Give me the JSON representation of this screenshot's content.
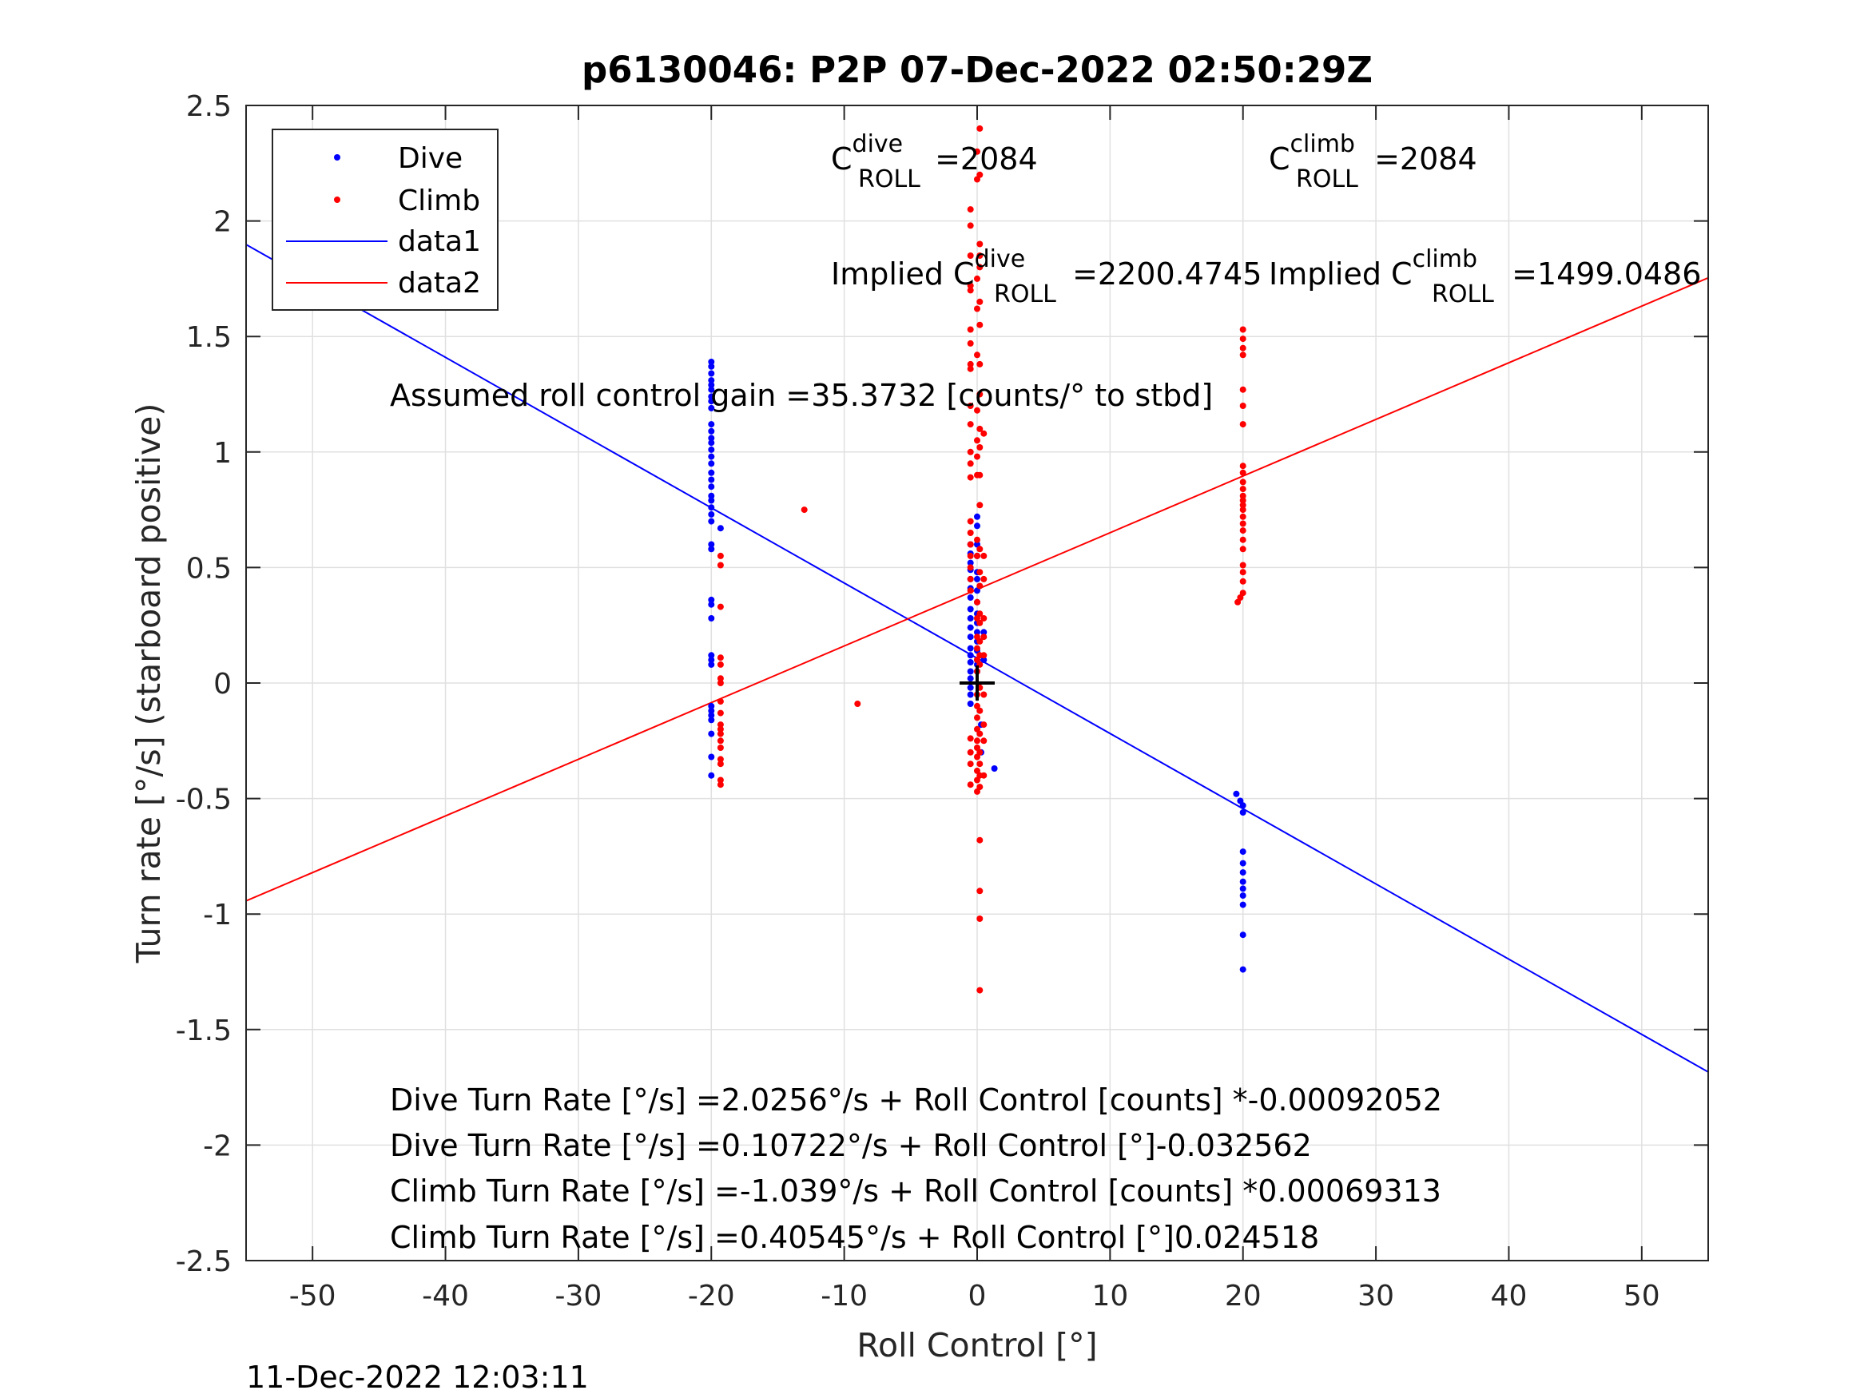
{
  "chart_data": {
    "type": "scatter",
    "title": "p6130046: P2P 07-Dec-2022 02:50:29Z",
    "xlabel": "Roll Control [°]",
    "ylabel": "Turn rate [°/s] (starboard positive)",
    "xlim": [
      -55,
      55
    ],
    "ylim": [
      -2.5,
      2.5
    ],
    "xticks": [
      "-50",
      "-40",
      "-30",
      "-20",
      "-10",
      "0",
      "10",
      "20",
      "30",
      "40",
      "50"
    ],
    "yticks": [
      "2.5",
      "2",
      "1.5",
      "1",
      "0.5",
      "0",
      "-0.5",
      "-1",
      "-1.5",
      "-2",
      "-2.5"
    ],
    "grid": true,
    "legend_position": "top-left",
    "series": [
      {
        "name": "Dive",
        "kind": "points",
        "color": "#0000ff",
        "points": [
          [
            -20,
            1.39
          ],
          [
            -20,
            1.37
          ],
          [
            -20,
            1.34
          ],
          [
            -20,
            1.31
          ],
          [
            -20,
            1.29
          ],
          [
            -20,
            1.27
          ],
          [
            -20,
            1.24
          ],
          [
            -20,
            1.22
          ],
          [
            -20,
            1.19
          ],
          [
            -20,
            1.12
          ],
          [
            -20,
            1.09
          ],
          [
            -20,
            1.06
          ],
          [
            -20,
            1.04
          ],
          [
            -20,
            1.01
          ],
          [
            -20,
            0.98
          ],
          [
            -20,
            0.95
          ],
          [
            -20,
            0.91
          ],
          [
            -20,
            0.88
          ],
          [
            -20,
            0.85
          ],
          [
            -20,
            0.81
          ],
          [
            -20,
            0.79
          ],
          [
            -20,
            0.76
          ],
          [
            -20,
            0.73
          ],
          [
            -20,
            0.7
          ],
          [
            -20,
            0.6
          ],
          [
            -20,
            0.58
          ],
          [
            -20,
            0.36
          ],
          [
            -20,
            0.34
          ],
          [
            -20,
            0.28
          ],
          [
            -20,
            0.12
          ],
          [
            -20,
            0.1
          ],
          [
            -20,
            0.08
          ],
          [
            -20,
            -0.1
          ],
          [
            -20,
            -0.12
          ],
          [
            -20,
            -0.14
          ],
          [
            -20,
            -0.16
          ],
          [
            -20,
            -0.22
          ],
          [
            -20,
            -0.32
          ],
          [
            -20,
            -0.4
          ],
          [
            -19.3,
            0.67
          ],
          [
            -0.5,
            0.6
          ],
          [
            -0.5,
            0.56
          ],
          [
            -0.5,
            0.52
          ],
          [
            -0.5,
            0.49
          ],
          [
            -0.5,
            0.45
          ],
          [
            -0.5,
            0.41
          ],
          [
            -0.5,
            0.37
          ],
          [
            -0.5,
            0.32
          ],
          [
            -0.5,
            0.28
          ],
          [
            -0.5,
            0.24
          ],
          [
            -0.5,
            0.2
          ],
          [
            -0.5,
            0.15
          ],
          [
            -0.5,
            0.12
          ],
          [
            -0.5,
            0.09
          ],
          [
            -0.5,
            0.05
          ],
          [
            -0.5,
            0.02
          ],
          [
            -0.5,
            -0.02
          ],
          [
            -0.5,
            -0.05
          ],
          [
            -0.5,
            -0.09
          ],
          [
            0,
            0.72
          ],
          [
            0,
            0.68
          ],
          [
            0,
            0.6
          ],
          [
            0,
            0.55
          ],
          [
            0,
            0.48
          ],
          [
            0,
            0.45
          ],
          [
            0,
            0.4
          ],
          [
            0,
            0.35
          ],
          [
            0,
            0.3
          ],
          [
            0,
            0.26
          ],
          [
            0,
            0.22
          ],
          [
            0,
            0.18
          ],
          [
            0,
            0.14
          ],
          [
            0,
            0.1
          ],
          [
            0,
            0.08
          ],
          [
            0,
            0.05
          ],
          [
            0.3,
            -0.18
          ],
          [
            0.3,
            -0.3
          ],
          [
            0.5,
            0.22
          ],
          [
            0.5,
            0.1
          ],
          [
            1.3,
            -0.37
          ],
          [
            19.5,
            -0.48
          ],
          [
            19.8,
            -0.51
          ],
          [
            20,
            -0.53
          ],
          [
            20,
            -0.56
          ],
          [
            20,
            -0.73
          ],
          [
            20,
            -0.78
          ],
          [
            20,
            -0.82
          ],
          [
            20,
            -0.86
          ],
          [
            20,
            -0.89
          ],
          [
            20,
            -0.92
          ],
          [
            20,
            -0.96
          ],
          [
            20,
            -1.09
          ],
          [
            20,
            -1.24
          ]
        ]
      },
      {
        "name": "Climb",
        "kind": "points",
        "color": "#ff0000",
        "points": [
          [
            -19.3,
            0.55
          ],
          [
            -19.3,
            0.51
          ],
          [
            -19.3,
            0.33
          ],
          [
            -19.3,
            0.11
          ],
          [
            -19.3,
            0.08
          ],
          [
            -19.3,
            0.02
          ],
          [
            -19.3,
            0.0
          ],
          [
            -19.3,
            -0.08
          ],
          [
            -19.3,
            -0.13
          ],
          [
            -19.3,
            -0.18
          ],
          [
            -19.3,
            -0.2
          ],
          [
            -19.3,
            -0.22
          ],
          [
            -19.3,
            -0.25
          ],
          [
            -19.3,
            -0.28
          ],
          [
            -19.3,
            -0.33
          ],
          [
            -19.3,
            -0.35
          ],
          [
            -19.3,
            -0.42
          ],
          [
            -19.3,
            -0.44
          ],
          [
            -13,
            0.75
          ],
          [
            -9,
            -0.09
          ],
          [
            -0.5,
            2.05
          ],
          [
            -0.5,
            1.98
          ],
          [
            -0.5,
            1.85
          ],
          [
            -0.5,
            1.72
          ],
          [
            -0.5,
            1.7
          ],
          [
            -0.5,
            1.53
          ],
          [
            -0.5,
            1.47
          ],
          [
            -0.5,
            1.38
          ],
          [
            -0.5,
            1.36
          ],
          [
            -0.5,
            1.2
          ],
          [
            -0.5,
            1.12
          ],
          [
            -0.5,
            1.0
          ],
          [
            -0.5,
            0.95
          ],
          [
            -0.5,
            0.89
          ],
          [
            -0.5,
            0.7
          ],
          [
            -0.5,
            0.65
          ],
          [
            -0.5,
            0.6
          ],
          [
            -0.5,
            0.55
          ],
          [
            -0.5,
            0.5
          ],
          [
            -0.5,
            0.45
          ],
          [
            -0.5,
            0.4
          ],
          [
            -0.5,
            -0.24
          ],
          [
            -0.5,
            -0.3
          ],
          [
            -0.5,
            -0.35
          ],
          [
            -0.5,
            -0.44
          ],
          [
            0,
            2.3
          ],
          [
            0,
            2.18
          ],
          [
            0,
            1.75
          ],
          [
            0,
            1.62
          ],
          [
            0,
            1.42
          ],
          [
            0,
            1.18
          ],
          [
            0,
            1.05
          ],
          [
            0,
            0.98
          ],
          [
            0,
            0.9
          ],
          [
            0,
            0.62
          ],
          [
            0,
            0.55
          ],
          [
            0,
            0.35
          ],
          [
            0,
            0.28
          ],
          [
            0,
            0.2
          ],
          [
            0,
            0.15
          ],
          [
            0,
            0.1
          ],
          [
            0,
            0.05
          ],
          [
            0,
            -0.05
          ],
          [
            0,
            -0.1
          ],
          [
            0,
            -0.15
          ],
          [
            0,
            -0.2
          ],
          [
            0,
            -0.25
          ],
          [
            0,
            -0.28
          ],
          [
            0,
            -0.32
          ],
          [
            0,
            -0.38
          ],
          [
            0,
            -0.42
          ],
          [
            0,
            -0.47
          ],
          [
            0.2,
            2.4
          ],
          [
            0.2,
            2.2
          ],
          [
            0.2,
            1.9
          ],
          [
            0.2,
            1.85
          ],
          [
            0.2,
            1.8
          ],
          [
            0.2,
            1.65
          ],
          [
            0.2,
            1.55
          ],
          [
            0.2,
            1.38
          ],
          [
            0.2,
            1.25
          ],
          [
            0.2,
            1.1
          ],
          [
            0.2,
            1.02
          ],
          [
            0.2,
            0.9
          ],
          [
            0.2,
            0.77
          ],
          [
            0.2,
            0.58
          ],
          [
            0.2,
            0.48
          ],
          [
            0.2,
            0.42
          ],
          [
            0.2,
            0.3
          ],
          [
            0.2,
            0.26
          ],
          [
            0.2,
            0.18
          ],
          [
            0.2,
            0.12
          ],
          [
            0.2,
            0.08
          ],
          [
            0.2,
            -0.02
          ],
          [
            0.2,
            -0.12
          ],
          [
            0.2,
            -0.22
          ],
          [
            0.2,
            -0.3
          ],
          [
            0.2,
            -0.35
          ],
          [
            0.2,
            -0.4
          ],
          [
            0.2,
            -0.45
          ],
          [
            0.2,
            -0.68
          ],
          [
            0.2,
            -0.9
          ],
          [
            0.2,
            -1.02
          ],
          [
            0.2,
            -1.33
          ],
          [
            0.5,
            1.08
          ],
          [
            0.5,
            0.55
          ],
          [
            0.5,
            0.45
          ],
          [
            0.5,
            0.28
          ],
          [
            0.5,
            0.2
          ],
          [
            0.5,
            0.12
          ],
          [
            0.5,
            -0.05
          ],
          [
            0.5,
            -0.18
          ],
          [
            0.5,
            -0.25
          ],
          [
            0.5,
            -0.4
          ],
          [
            19.6,
            0.35
          ],
          [
            19.8,
            0.37
          ],
          [
            20,
            1.53
          ],
          [
            20,
            1.49
          ],
          [
            20,
            1.45
          ],
          [
            20,
            1.42
          ],
          [
            20,
            1.27
          ],
          [
            20,
            1.2
          ],
          [
            20,
            1.12
          ],
          [
            20,
            0.94
          ],
          [
            20,
            0.91
          ],
          [
            20,
            0.87
          ],
          [
            20,
            0.84
          ],
          [
            20,
            0.81
          ],
          [
            20,
            0.79
          ],
          [
            20,
            0.77
          ],
          [
            20,
            0.75
          ],
          [
            20,
            0.72
          ],
          [
            20,
            0.69
          ],
          [
            20,
            0.66
          ],
          [
            20,
            0.62
          ],
          [
            20,
            0.58
          ],
          [
            20,
            0.51
          ],
          [
            20,
            0.48
          ],
          [
            20,
            0.44
          ],
          [
            20,
            0.39
          ]
        ]
      },
      {
        "name": "data1",
        "kind": "line",
        "color": "#0000ff",
        "intercept": 0.10722,
        "slope": -0.032562
      },
      {
        "name": "data2",
        "kind": "line",
        "color": "#ff0000",
        "intercept": 0.40545,
        "slope": 0.024518
      }
    ],
    "center_marker": {
      "x": 0,
      "y": 0,
      "color": "#000000"
    },
    "annotations": {
      "c_roll_dive": {
        "base": "C",
        "sup": "dive",
        "sub": "ROLL",
        "rest": " =2084"
      },
      "c_roll_climb": {
        "base": "C",
        "sup": "climb",
        "sub": "ROLL",
        "rest": " =2084"
      },
      "implied_dive": {
        "base": "Implied C",
        "sup": "dive",
        "sub": "ROLL",
        "rest": " =2200.4745"
      },
      "implied_climb": {
        "base": "Implied C",
        "sup": "climb",
        "sub": "ROLL",
        "rest": " =1499.0486"
      },
      "gain": "Assumed roll control gain =35.3732 [counts/° to stbd]",
      "equations": [
        "Dive Turn Rate [°/s] =2.0256°/s + Roll Control [counts] *-0.00092052",
        "Dive Turn Rate [°/s] =0.10722°/s + Roll Control [°]-0.032562",
        "Climb Turn Rate [°/s] =-1.039°/s + Roll Control [counts] *0.00069313",
        "Climb Turn Rate [°/s] =0.40545°/s + Roll Control [°]0.024518"
      ]
    },
    "footer_timestamp": "11-Dec-2022 12:03:11"
  }
}
